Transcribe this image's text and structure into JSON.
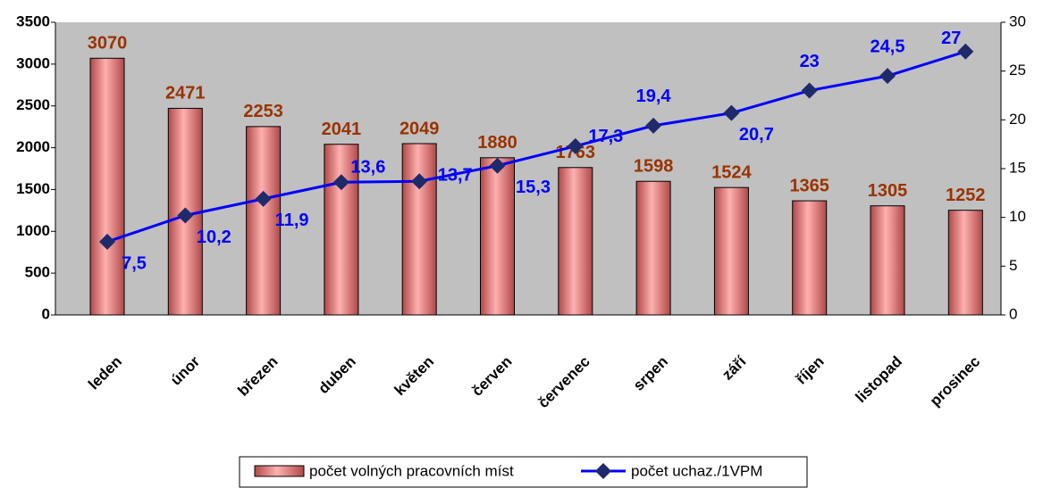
{
  "chart_data": {
    "type": "bar",
    "categories": [
      "leden",
      "únor",
      "březen",
      "duben",
      "květen",
      "červen",
      "červenec",
      "srpen",
      "září",
      "říjen",
      "listopad",
      "prosinec"
    ],
    "series": [
      {
        "name": "počet volných pracovních míst",
        "type": "bar",
        "color": "#ff8080",
        "label_color": "#993300",
        "values": [
          3070,
          2471,
          2253,
          2041,
          2049,
          1880,
          1763,
          1598,
          1524,
          1365,
          1305,
          1252
        ]
      },
      {
        "name": "počet uchaz./1VPM",
        "type": "line",
        "axis": "y2",
        "color": "#0000ff",
        "marker_color": "#1f2a6b",
        "values": [
          7.5,
          10.2,
          11.9,
          13.6,
          13.7,
          15.3,
          17.3,
          19.4,
          20.7,
          23,
          24.5,
          27
        ],
        "value_labels": [
          "7,5",
          "10,2",
          "11,9",
          "13,6",
          "13,7",
          "15,3",
          "17,3",
          "19,4",
          "20,7",
          "23",
          "24,5",
          "27"
        ]
      }
    ],
    "ylim": [
      0,
      3500
    ],
    "yticks": [
      0,
      500,
      1000,
      1500,
      2000,
      2500,
      3000,
      3500
    ],
    "y2lim": [
      0,
      30
    ],
    "y2ticks": [
      0,
      5,
      10,
      15,
      20,
      25,
      30
    ],
    "plot_background": "#c0c0c0",
    "legend": "bottom"
  }
}
